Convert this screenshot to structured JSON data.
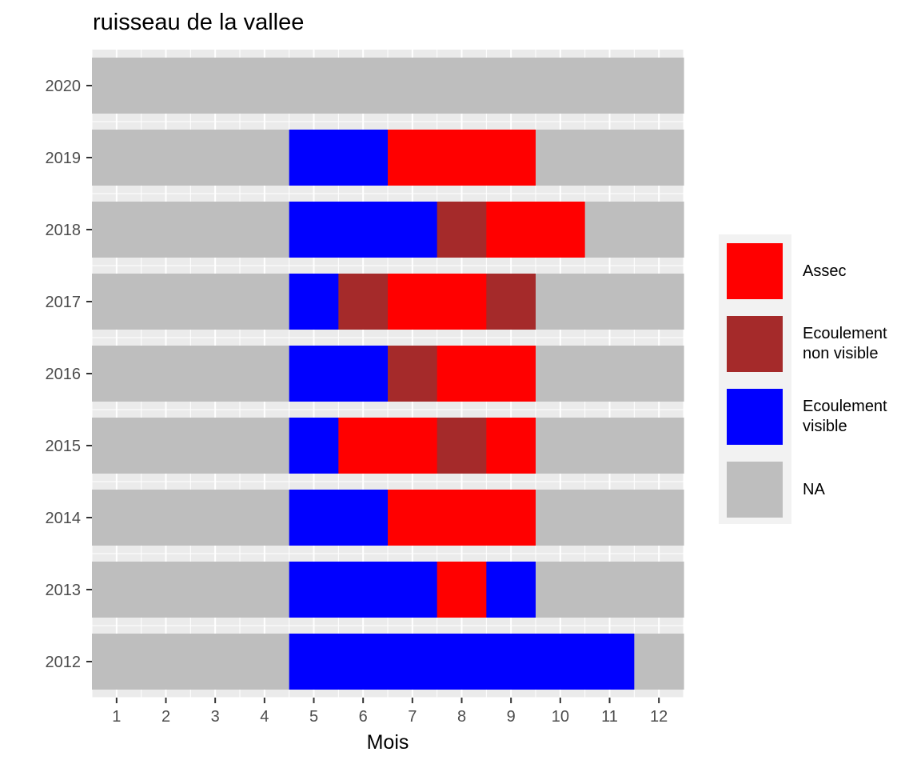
{
  "chart_data": {
    "type": "heatmap",
    "title": "ruisseau de la vallee",
    "xlabel": "Mois",
    "ylabel": "",
    "x_ticks": [
      1,
      2,
      3,
      4,
      5,
      6,
      7,
      8,
      9,
      10,
      11,
      12
    ],
    "xlim": [
      0.5,
      12.5
    ],
    "years": [
      "2012",
      "2013",
      "2014",
      "2015",
      "2016",
      "2017",
      "2018",
      "2019",
      "2020"
    ],
    "grid": true,
    "legend_position": "right",
    "categories": [
      {
        "key": "assec",
        "label": "Assec",
        "color": "#ff0000"
      },
      {
        "key": "nv",
        "label": "Ecoulement\nnon visible",
        "color": "#a52a2a"
      },
      {
        "key": "v",
        "label": "Ecoulement\nvisible",
        "color": "#0000ff"
      },
      {
        "key": "na",
        "label": "NA",
        "color": "#bebebe"
      }
    ],
    "rows": [
      {
        "year": "2012",
        "months": [
          "na",
          "na",
          "na",
          "na",
          "v",
          "v",
          "v",
          "v",
          "v",
          "v",
          "v",
          "na"
        ]
      },
      {
        "year": "2013",
        "months": [
          "na",
          "na",
          "na",
          "na",
          "v",
          "v",
          "v",
          "assec",
          "v",
          "na",
          "na",
          "na"
        ]
      },
      {
        "year": "2014",
        "months": [
          "na",
          "na",
          "na",
          "na",
          "v",
          "v",
          "assec",
          "assec",
          "assec",
          "na",
          "na",
          "na"
        ]
      },
      {
        "year": "2015",
        "months": [
          "na",
          "na",
          "na",
          "na",
          "v",
          "assec",
          "assec",
          "nv",
          "assec",
          "na",
          "na",
          "na"
        ]
      },
      {
        "year": "2016",
        "months": [
          "na",
          "na",
          "na",
          "na",
          "v",
          "v",
          "nv",
          "assec",
          "assec",
          "na",
          "na",
          "na"
        ]
      },
      {
        "year": "2017",
        "months": [
          "na",
          "na",
          "na",
          "na",
          "v",
          "nv",
          "assec",
          "assec",
          "nv",
          "na",
          "na",
          "na"
        ]
      },
      {
        "year": "2018",
        "months": [
          "na",
          "na",
          "na",
          "na",
          "v",
          "v",
          "v",
          "nv",
          "assec",
          "assec",
          "na",
          "na"
        ]
      },
      {
        "year": "2019",
        "months": [
          "na",
          "na",
          "na",
          "na",
          "v",
          "v",
          "assec",
          "assec",
          "assec",
          "na",
          "na",
          "na"
        ]
      },
      {
        "year": "2020",
        "months": [
          "na",
          "na",
          "na",
          "na",
          "na",
          "na",
          "na",
          "na",
          "na",
          "na",
          "na",
          "na"
        ]
      }
    ]
  }
}
